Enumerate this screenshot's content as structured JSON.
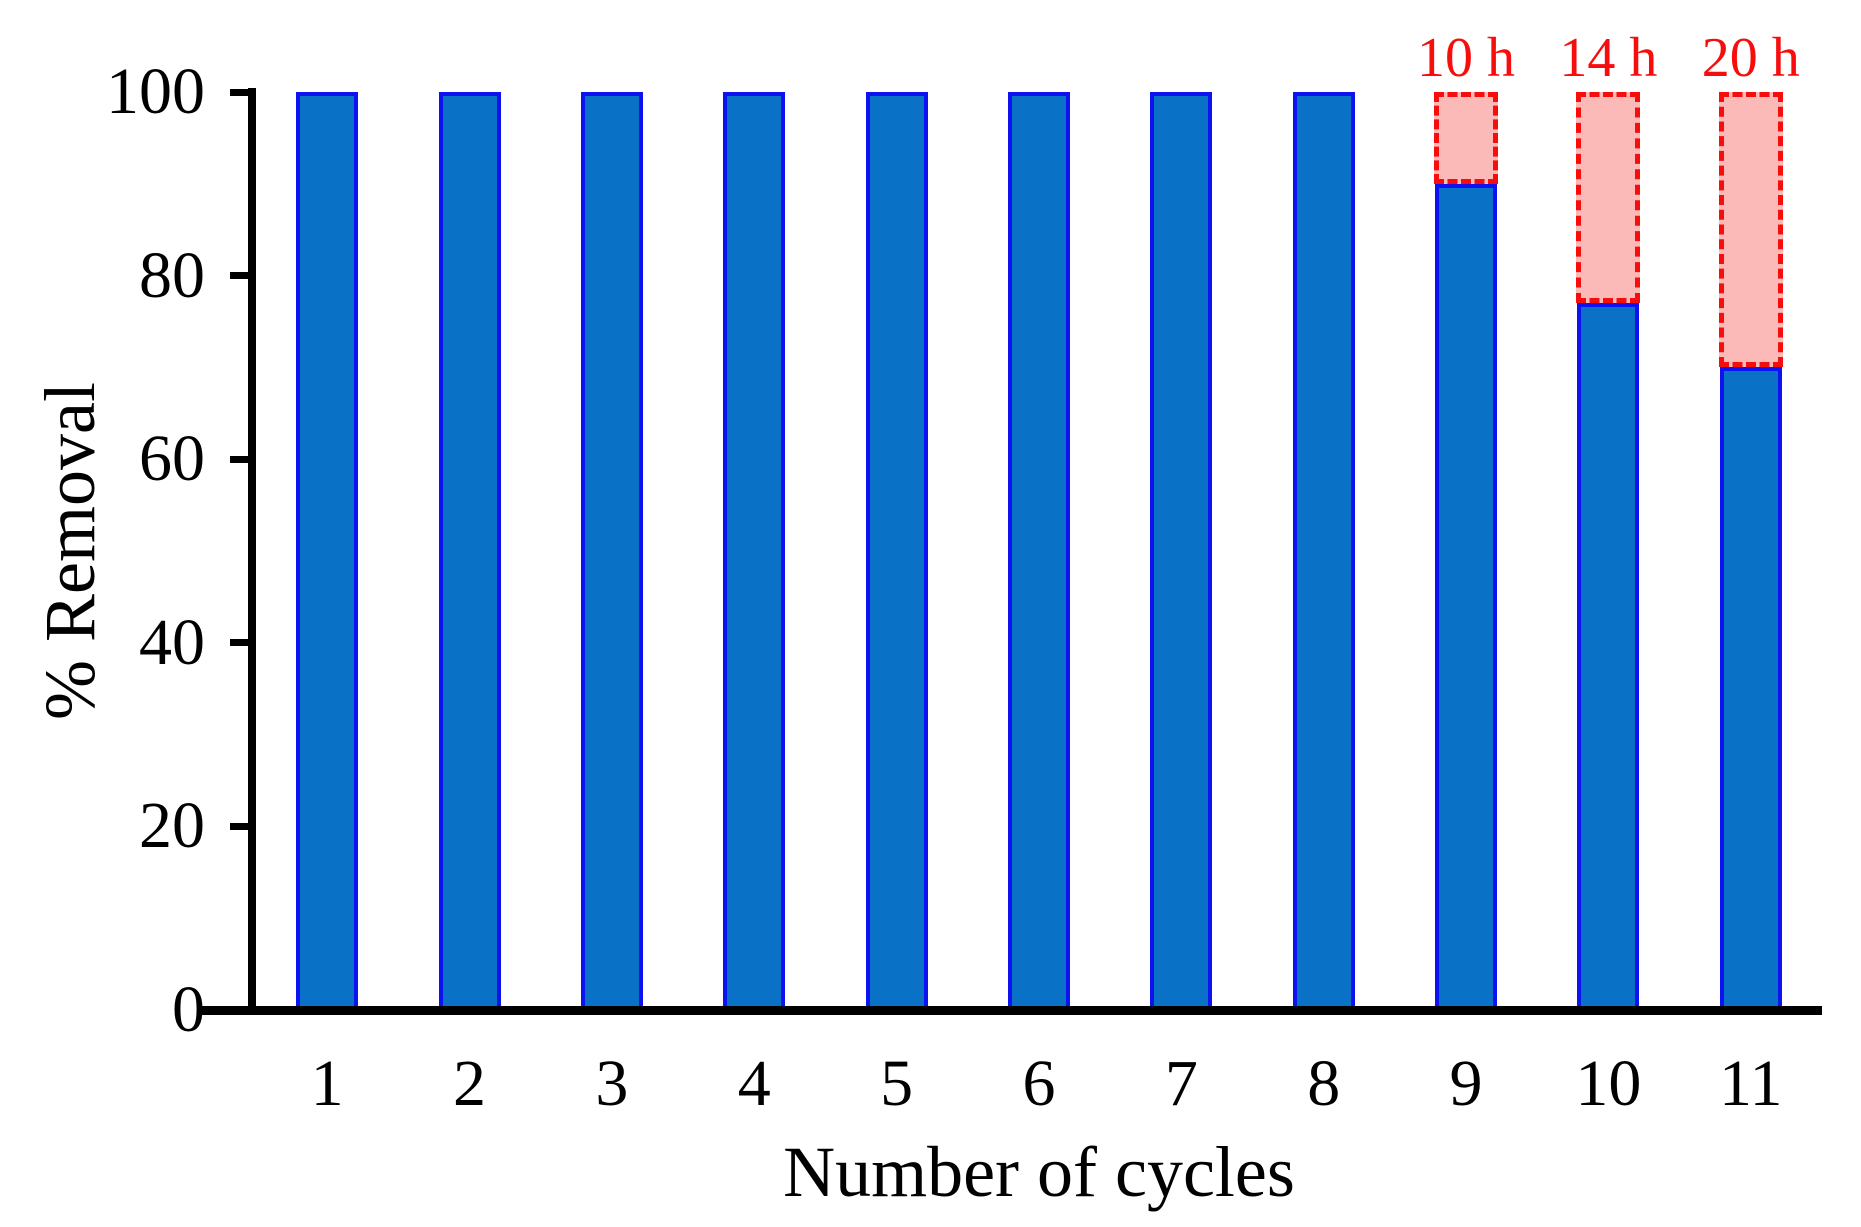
{
  "chart_data": {
    "type": "bar",
    "title": "",
    "xlabel": "Number of cycles",
    "ylabel": "% Removal",
    "categories": [
      "1",
      "2",
      "3",
      "4",
      "5",
      "6",
      "7",
      "8",
      "9",
      "10",
      "11"
    ],
    "values": [
      100,
      100,
      100,
      100,
      100,
      100,
      100,
      100,
      90,
      77,
      70
    ],
    "ylim": [
      0,
      100
    ],
    "yticks": [
      0,
      20,
      40,
      60,
      80,
      100
    ],
    "grid": false,
    "legend": "none",
    "annotations": [
      {
        "category": "9",
        "label": "10 h",
        "extension_top": 100
      },
      {
        "category": "10",
        "label": "14 h",
        "extension_top": 100
      },
      {
        "category": "11",
        "label": "20 h",
        "extension_top": 100
      }
    ],
    "colors": {
      "bar_fill": "#0a72c6",
      "bar_border": "#0e12f0",
      "extension_fill": "#fbbab8",
      "extension_border": "#f70d0c",
      "annotation_text": "#f70d0c",
      "axis": "#000000",
      "text": "#000000"
    }
  }
}
